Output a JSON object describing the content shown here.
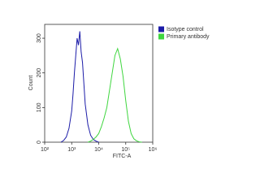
{
  "chart_data": {
    "type": "line",
    "x_label": "FITC-A",
    "y_label": "Count",
    "xlog": true,
    "xlim": [
      100,
      1000000
    ],
    "xticks": [
      {
        "value": 100,
        "label": "10²"
      },
      {
        "value": 1000,
        "label": "10³"
      },
      {
        "value": 10000,
        "label": "10⁴"
      },
      {
        "value": 100000,
        "label": "10⁵"
      },
      {
        "value": 1000000,
        "label": "10⁶"
      }
    ],
    "ylim": [
      0,
      340
    ],
    "yticks": [
      0,
      100,
      200,
      300
    ],
    "legend": "top-right",
    "series": [
      {
        "name": "Isotype control",
        "color": "#1c1ca8",
        "x": [
          398,
          501,
          631,
          794,
          1000,
          1122,
          1259,
          1413,
          1585,
          1778,
          1995,
          2239,
          2512,
          2818,
          3162,
          3981,
          5012,
          6310,
          7943,
          10000
        ],
        "values": [
          0,
          5,
          15,
          40,
          90,
          140,
          200,
          250,
          300,
          280,
          320,
          260,
          230,
          170,
          110,
          50,
          20,
          8,
          3,
          0
        ]
      },
      {
        "name": "Primary antibody",
        "color": "#3fd63f",
        "x": [
          3981,
          5012,
          6310,
          7943,
          10000,
          12589,
          15849,
          19953,
          25119,
          31623,
          39811,
          50119,
          63096,
          79433,
          100000,
          125893,
          158489,
          199526,
          251189,
          316228,
          398107
        ],
        "values": [
          0,
          3,
          8,
          15,
          25,
          45,
          70,
          100,
          150,
          200,
          250,
          270,
          240,
          190,
          120,
          60,
          25,
          10,
          4,
          1,
          0
        ]
      }
    ]
  }
}
